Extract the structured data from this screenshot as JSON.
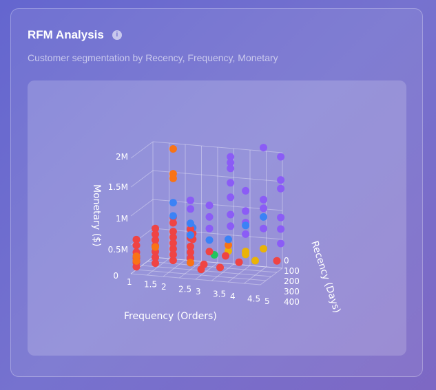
{
  "card": {
    "title": "RFM Analysis",
    "info_icon": "info-icon",
    "subtitle": "Customer segmentation by Recency, Frequency, Monetary"
  },
  "chart_data": {
    "type": "scatter3d",
    "x_axis": {
      "label": "Frequency (Orders)",
      "ticks": [
        "1",
        "1.5",
        "2",
        "2.5",
        "3",
        "3.5",
        "4",
        "4.5",
        "5"
      ],
      "range": [
        1,
        5
      ]
    },
    "y_axis": {
      "label": "Recency (Days)",
      "ticks": [
        "0",
        "100",
        "200",
        "300",
        "400"
      ],
      "range": [
        0,
        400
      ]
    },
    "z_axis": {
      "label": "Monetary ($)",
      "ticks": [
        "0",
        "0.5M",
        "1M",
        "1.5M",
        "2M"
      ],
      "range": [
        0,
        2000000
      ]
    },
    "grid": true,
    "segment_colors": {
      "red": "#ef4444",
      "orange": "#f97316",
      "blue": "#3b82f6",
      "purple": "#8b5cf6",
      "yellow": "#eab308",
      "green": "#22c55e"
    },
    "points": [
      [
        1,
        300,
        50000,
        "red"
      ],
      [
        1,
        300,
        120000,
        "red"
      ],
      [
        1,
        300,
        200000,
        "red"
      ],
      [
        1,
        300,
        300000,
        "red"
      ],
      [
        1,
        300,
        420000,
        "red"
      ],
      [
        1,
        300,
        520000,
        "red"
      ],
      [
        1,
        300,
        150000,
        "orange"
      ],
      [
        1,
        300,
        230000,
        "orange"
      ],
      [
        1.5,
        250,
        100000,
        "red"
      ],
      [
        1.5,
        250,
        200000,
        "red"
      ],
      [
        1.5,
        250,
        300000,
        "red"
      ],
      [
        1.5,
        250,
        400000,
        "red"
      ],
      [
        1.5,
        250,
        500000,
        "red"
      ],
      [
        1.5,
        250,
        600000,
        "red"
      ],
      [
        1.5,
        250,
        700000,
        "red"
      ],
      [
        1.5,
        250,
        380000,
        "orange"
      ],
      [
        2,
        220,
        150000,
        "red"
      ],
      [
        2,
        220,
        250000,
        "red"
      ],
      [
        2,
        220,
        350000,
        "red"
      ],
      [
        2,
        220,
        450000,
        "red"
      ],
      [
        2,
        220,
        550000,
        "red"
      ],
      [
        2,
        220,
        650000,
        "red"
      ],
      [
        2,
        220,
        800000,
        "red"
      ],
      [
        2,
        220,
        900000,
        "red"
      ],
      [
        2,
        220,
        1650000,
        "orange"
      ],
      [
        2,
        220,
        1570000,
        "orange"
      ],
      [
        2,
        220,
        2080000,
        "orange"
      ],
      [
        2,
        220,
        1150000,
        "blue"
      ],
      [
        2,
        220,
        920000,
        "blue"
      ],
      [
        2.5,
        200,
        200000,
        "red"
      ],
      [
        2.5,
        200,
        300000,
        "red"
      ],
      [
        2.5,
        200,
        400000,
        "red"
      ],
      [
        2.5,
        200,
        550000,
        "red"
      ],
      [
        2.5,
        200,
        700000,
        "red"
      ],
      [
        2.5,
        200,
        120000,
        "orange"
      ],
      [
        2.5,
        200,
        600000,
        "blue"
      ],
      [
        2.5,
        200,
        800000,
        "blue"
      ],
      [
        2.5,
        200,
        1050000,
        "purple"
      ],
      [
        2.5,
        200,
        1200000,
        "purple"
      ],
      [
        2.4,
        100,
        550000,
        "red"
      ],
      [
        2.4,
        100,
        650000,
        "blue"
      ],
      [
        2.4,
        100,
        450000,
        "red"
      ],
      [
        3,
        150,
        300000,
        "red"
      ],
      [
        3,
        150,
        500000,
        "blue"
      ],
      [
        3,
        150,
        700000,
        "purple"
      ],
      [
        3,
        150,
        900000,
        "purple"
      ],
      [
        3,
        150,
        1100000,
        "purple"
      ],
      [
        3,
        60,
        180000,
        "green"
      ],
      [
        3,
        250,
        150000,
        "red"
      ],
      [
        3,
        300,
        100000,
        "red"
      ],
      [
        3.5,
        250,
        120000,
        "red"
      ],
      [
        3.5,
        150,
        250000,
        "red"
      ],
      [
        3.5,
        100,
        300000,
        "yellow"
      ],
      [
        3.5,
        100,
        400000,
        "orange"
      ],
      [
        3.5,
        100,
        500000,
        "blue"
      ],
      [
        3.5,
        60,
        700000,
        "purple"
      ],
      [
        3.5,
        60,
        900000,
        "purple"
      ],
      [
        3.5,
        60,
        1200000,
        "purple"
      ],
      [
        3.5,
        60,
        1450000,
        "purple"
      ],
      [
        3.5,
        60,
        1700000,
        "purple"
      ],
      [
        3.5,
        60,
        1900000,
        "purple"
      ],
      [
        3.5,
        60,
        1800000,
        "purple"
      ],
      [
        4,
        80,
        300000,
        "yellow"
      ],
      [
        4,
        80,
        250000,
        "yellow"
      ],
      [
        4,
        80,
        600000,
        "purple"
      ],
      [
        4,
        80,
        800000,
        "purple"
      ],
      [
        4,
        80,
        1000000,
        "purple"
      ],
      [
        4,
        80,
        1350000,
        "purple"
      ],
      [
        4,
        80,
        750000,
        "blue"
      ],
      [
        4,
        200,
        200000,
        "red"
      ],
      [
        4.5,
        50,
        350000,
        "yellow"
      ],
      [
        4.5,
        200,
        250000,
        "yellow"
      ],
      [
        4.5,
        50,
        700000,
        "purple"
      ],
      [
        4.5,
        50,
        1050000,
        "purple"
      ],
      [
        4.5,
        50,
        1200000,
        "purple"
      ],
      [
        4.5,
        50,
        2100000,
        "purple"
      ],
      [
        4.5,
        50,
        900000,
        "blue"
      ],
      [
        5,
        30,
        450000,
        "purple"
      ],
      [
        5,
        30,
        1400000,
        "purple"
      ],
      [
        5,
        30,
        1550000,
        "purple"
      ],
      [
        5,
        30,
        1950000,
        "purple"
      ],
      [
        5,
        30,
        700000,
        "purple"
      ],
      [
        5,
        100,
        200000,
        "red"
      ],
      [
        5,
        30,
        900000,
        "purple"
      ]
    ]
  }
}
